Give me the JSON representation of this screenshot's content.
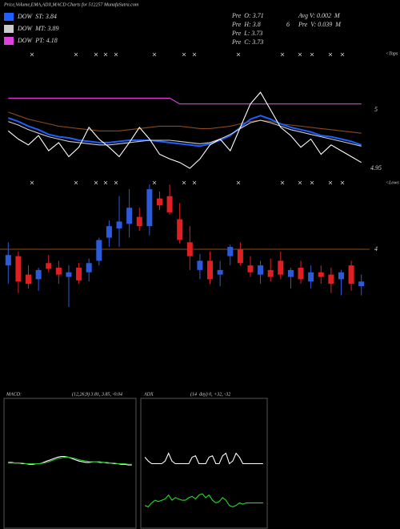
{
  "chart_data": [
    {
      "type": "line",
      "title": "Price,Volume,EMA,ADX,MACD Charts for 512257 MunafaSutra.com",
      "ylim": [
        4.9466,
        5.0527
      ],
      "yticks": [
        5,
        4.95
      ],
      "annotations": [
        "<Tops",
        "Pre  O: 3.71",
        "Pre  H: 3.8",
        "Pre  L: 3.73",
        "Pre  C: 3.73",
        "Avg V: 0.002  M",
        "6",
        "Pre  V: 0.039  M"
      ],
      "series": [
        {
          "color": "#8b4a1a",
          "values": [
            4.998,
            4.995,
            4.992,
            4.99,
            4.988,
            4.986,
            4.985,
            4.984,
            4.983,
            4.982,
            4.982,
            4.982,
            4.983,
            4.984,
            4.985,
            4.986,
            4.986,
            4.986,
            4.985,
            4.984,
            4.984,
            4.985,
            4.986,
            4.988,
            4.99,
            4.991,
            4.99,
            4.988,
            4.987,
            4.986,
            4.985,
            4.984,
            4.983,
            4.982,
            4.981,
            4.98
          ]
        },
        {
          "name": "DOW  ST: 3.84",
          "color": "#1f5fff",
          "values": [
            4.993,
            4.99,
            4.986,
            4.983,
            4.979,
            4.977,
            4.976,
            4.974,
            4.973,
            4.972,
            4.972,
            4.973,
            4.974,
            4.974,
            4.974,
            4.973,
            4.972,
            4.971,
            4.97,
            4.969,
            4.971,
            4.974,
            4.978,
            4.985,
            4.992,
            4.995,
            4.992,
            4.988,
            4.985,
            4.983,
            4.981,
            4.978,
            4.977,
            4.975,
            4.973,
            4.97
          ]
        },
        {
          "name": "DOW  MT: 3.89",
          "color": "#cccccc",
          "values": [
            4.99,
            4.987,
            4.983,
            4.98,
            4.977,
            4.975,
            4.973,
            4.972,
            4.971,
            4.97,
            4.97,
            4.971,
            4.972,
            4.973,
            4.974,
            4.974,
            4.974,
            4.973,
            4.972,
            4.971,
            4.972,
            4.975,
            4.979,
            4.984,
            4.989,
            4.991,
            4.989,
            4.986,
            4.983,
            4.981,
            4.979,
            4.977,
            4.975,
            4.973,
            4.971,
            4.969
          ]
        },
        {
          "name": "DOW  PT: 4.18",
          "color": "#e040e0",
          "values": [
            5.01,
            5.01,
            5.01,
            5.01,
            5.01,
            5.01,
            5.01,
            5.01,
            5.01,
            5.01,
            5.01,
            5.01,
            5.01,
            5.01,
            5.01,
            5.01,
            5.01,
            5.005,
            5.005,
            5.005,
            5.005,
            5.005,
            5.005,
            5.005,
            5.005,
            5.005,
            5.005,
            5.005,
            5.005,
            5.005,
            5.005,
            5.005,
            5.005,
            5.005,
            5.005,
            5.005
          ]
        },
        {
          "color": "#ffffff",
          "values": [
            4.982,
            4.975,
            4.97,
            4.978,
            4.965,
            4.972,
            4.96,
            4.968,
            4.985,
            4.975,
            4.968,
            4.96,
            4.972,
            4.985,
            4.975,
            4.962,
            4.958,
            4.955,
            4.95,
            4.958,
            4.97,
            4.975,
            4.965,
            4.985,
            5.005,
            5.015,
            5.0,
            4.985,
            4.978,
            4.968,
            4.975,
            4.962,
            4.97,
            4.965,
            4.96,
            4.955
          ]
        }
      ]
    },
    {
      "type": "candlestick",
      "ylim": [
        3.451,
        4.597
      ],
      "yticks": [
        4
      ],
      "grid": true,
      "grid_color": "#8b4a1a",
      "up_color": "#2b5bd8",
      "down_color": "#e02020",
      "annotations": [
        "<Lows"
      ],
      "open": [
        3.86,
        3.94,
        3.78,
        3.74,
        3.88,
        3.84,
        3.76,
        3.84,
        3.8,
        3.9,
        4.1,
        4.18,
        4.22,
        4.28,
        4.2,
        4.44,
        4.46,
        4.26,
        4.06,
        3.82,
        3.9,
        3.78,
        3.94,
        4.0,
        3.86,
        3.78,
        3.82,
        3.9,
        3.76,
        3.84,
        3.72,
        3.8,
        3.78,
        3.74,
        3.86,
        3.68
      ],
      "high": [
        4.06,
        3.98,
        3.86,
        3.84,
        3.95,
        3.9,
        3.86,
        3.88,
        3.92,
        4.1,
        4.25,
        4.46,
        4.52,
        4.36,
        4.56,
        4.5,
        4.56,
        4.4,
        4.2,
        3.96,
        3.98,
        3.9,
        4.04,
        4.06,
        3.94,
        3.9,
        3.92,
        3.98,
        3.84,
        3.9,
        3.86,
        3.86,
        3.84,
        3.82,
        3.9,
        3.78
      ],
      "low": [
        3.7,
        3.62,
        3.66,
        3.64,
        3.8,
        3.7,
        3.5,
        3.7,
        3.72,
        3.86,
        4.02,
        4.02,
        4.1,
        4.16,
        4.12,
        4.34,
        4.3,
        4.05,
        3.82,
        3.74,
        3.7,
        3.68,
        3.86,
        3.86,
        3.76,
        3.7,
        3.72,
        3.74,
        3.66,
        3.7,
        3.66,
        3.7,
        3.62,
        3.6,
        3.64,
        3.6
      ],
      "close": [
        3.95,
        3.72,
        3.7,
        3.82,
        3.83,
        3.78,
        3.8,
        3.73,
        3.88,
        4.08,
        4.2,
        4.24,
        4.36,
        4.2,
        4.52,
        4.38,
        4.32,
        4.08,
        3.94,
        3.9,
        3.74,
        3.82,
        4.02,
        3.88,
        3.8,
        3.86,
        3.76,
        3.78,
        3.82,
        3.74,
        3.8,
        3.76,
        3.7,
        3.8,
        3.7,
        3.72
      ]
    },
    {
      "type": "line",
      "title": "MACD:",
      "subtitle": "(12,26,9) 3.81, 3.85, -0.04",
      "ylim": [
        -1,
        1
      ],
      "series": [
        {
          "color": "#ffffff",
          "values": [
            0.02,
            0.02,
            0.01,
            0.01,
            0.0,
            0.0,
            -0.01,
            -0.01,
            0.0,
            0.0,
            0.02,
            0.04,
            0.06,
            0.08,
            0.1,
            0.11,
            0.11,
            0.1,
            0.08,
            0.06,
            0.04,
            0.03,
            0.02,
            0.02,
            0.03,
            0.03,
            0.02,
            0.02,
            0.01,
            0.01,
            0.0,
            0.0,
            -0.01,
            -0.01,
            -0.02,
            -0.02
          ]
        },
        {
          "color": "#22cc22",
          "values": [
            0.01,
            0.01,
            0.01,
            0.01,
            0.01,
            0.0,
            0.0,
            0.0,
            0.0,
            0.0,
            0.01,
            0.02,
            0.04,
            0.06,
            0.08,
            0.09,
            0.1,
            0.1,
            0.09,
            0.08,
            0.06,
            0.05,
            0.04,
            0.03,
            0.03,
            0.03,
            0.03,
            0.02,
            0.02,
            0.01,
            0.01,
            0.0,
            0.0,
            0.0,
            -0.01,
            -0.01
          ]
        }
      ]
    },
    {
      "type": "line",
      "title": "ADX",
      "subtitle": "(14  day) 0, +32, -32",
      "ylim": [
        0,
        100
      ],
      "series": [
        {
          "color": "#ffffff",
          "values": [
            55,
            52,
            50,
            50,
            50,
            50,
            52,
            58,
            52,
            50,
            50,
            50,
            50,
            50,
            55,
            56,
            50,
            50,
            50,
            55,
            56,
            50,
            50,
            56,
            58,
            50,
            52,
            58,
            55,
            50,
            50,
            50,
            50,
            50,
            50,
            50
          ]
        },
        {
          "color": "#22dd22",
          "values": [
            18,
            17,
            20,
            22,
            21,
            22,
            23,
            26,
            22,
            24,
            23,
            22,
            22,
            24,
            25,
            23,
            26,
            27,
            24,
            26,
            22,
            20,
            21,
            24,
            22,
            18,
            17,
            18,
            20,
            19,
            20,
            20,
            20,
            20,
            20,
            20
          ]
        }
      ]
    }
  ]
}
